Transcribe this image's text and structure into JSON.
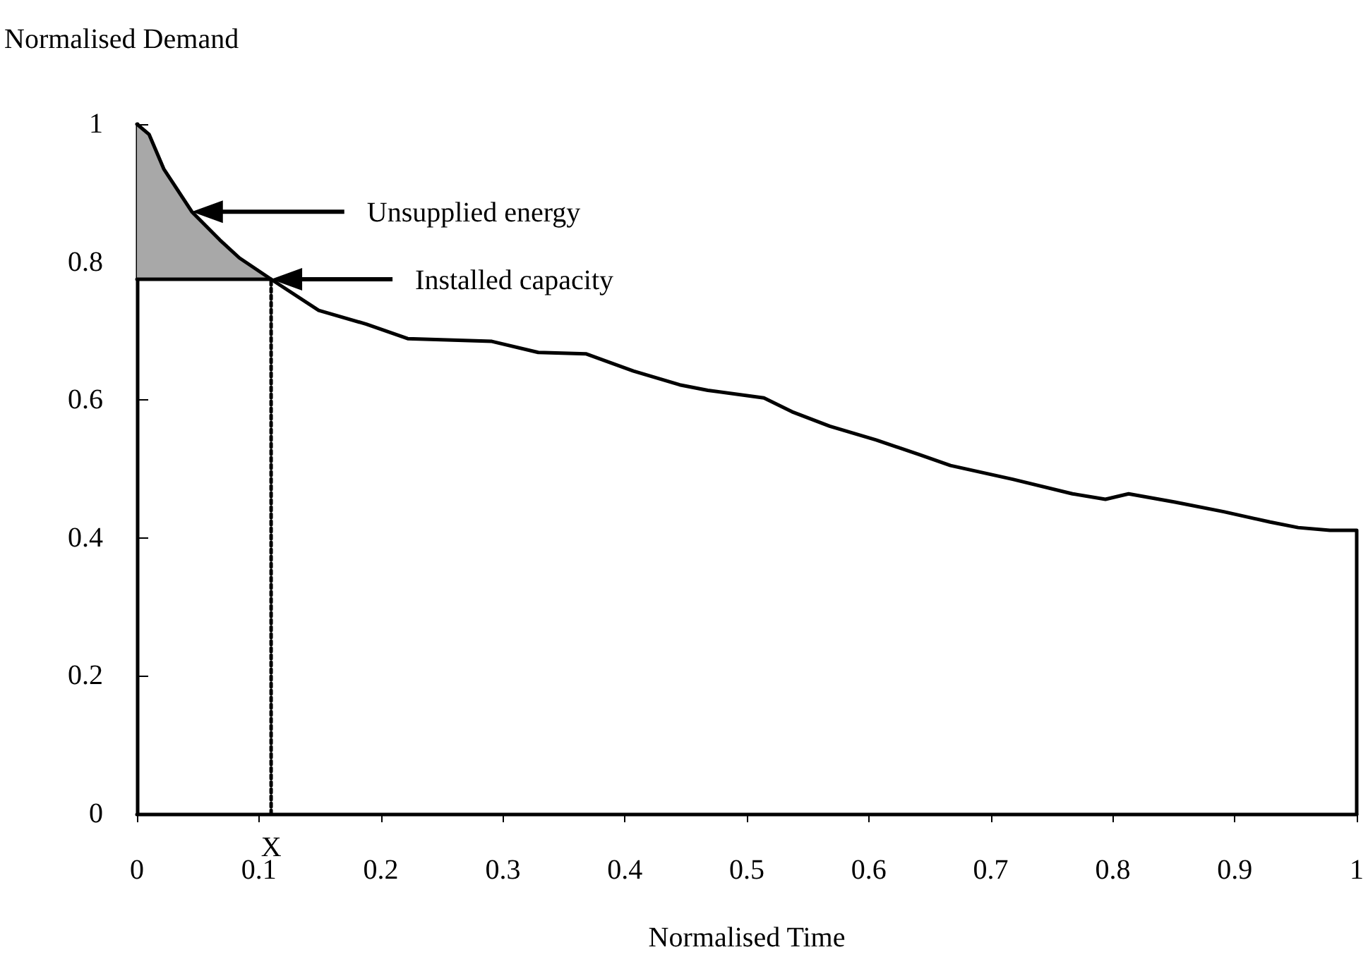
{
  "chart_data": {
    "type": "line",
    "xlabel": "Normalised Time",
    "ylabel": "Normalised Demand",
    "xlim": [
      0,
      1
    ],
    "xticks": [
      0,
      0.1,
      0.2,
      0.3,
      0.4,
      0.5,
      0.6,
      0.7,
      0.8,
      0.9,
      1
    ],
    "ylim": [
      0,
      1
    ],
    "yticks": [
      0,
      0.2,
      0.4,
      0.6,
      0.8,
      1
    ],
    "marker": "none",
    "grid": false,
    "series": [
      {
        "color": "#000000",
        "x": [
          0,
          0.01,
          0.022,
          0.045,
          0.068,
          0.084,
          0.11,
          0.149,
          0.188,
          0.222,
          0.291,
          0.329,
          0.368,
          0.407,
          0.445,
          0.468,
          0.514,
          0.537,
          0.568,
          0.606,
          0.641,
          0.667,
          0.718,
          0.767,
          0.794,
          0.813,
          0.851,
          0.891,
          0.929,
          0.952,
          0.978,
          1,
          1
        ],
        "values": [
          1,
          0.985,
          0.935,
          0.873,
          0.832,
          0.806,
          0.775,
          0.73,
          0.71,
          0.689,
          0.685,
          0.669,
          0.667,
          0.642,
          0.622,
          0.614,
          0.603,
          0.583,
          0.562,
          0.542,
          0.521,
          0.505,
          0.485,
          0.464,
          0.456,
          0.464,
          0.452,
          0.438,
          0.423,
          0.415,
          0.411,
          0.411,
          0
        ],
        "lower": [
          0.775,
          0.775,
          0.775,
          0.775,
          0.775,
          0.775,
          0.775,
          null,
          null,
          null,
          null,
          null,
          null,
          null,
          null,
          null,
          null,
          null,
          null,
          null,
          null,
          null,
          null,
          null,
          null,
          null,
          null,
          null,
          null,
          null,
          null,
          null,
          null
        ],
        "upper": [
          1,
          0.985,
          0.935,
          0.873,
          0.832,
          0.806,
          0.775,
          null,
          null,
          null,
          null,
          null,
          null,
          null,
          null,
          null,
          null,
          null,
          null,
          null,
          null,
          null,
          null,
          null,
          null,
          null,
          null,
          null,
          null,
          null,
          null,
          null,
          null
        ]
      },
      {
        "color": "#000000",
        "x": [
          0,
          0.11
        ],
        "values": [
          0.775,
          0.775
        ]
      },
      {
        "color": "#000000",
        "line_style": "dotted",
        "x": [
          0.11,
          0.11
        ],
        "values": [
          0,
          0.775
        ]
      }
    ],
    "annotations": [
      "Unsupplied energy",
      "Installed capacity",
      {
        "text": "X",
        "x": 0.11,
        "y": 0
      }
    ]
  }
}
